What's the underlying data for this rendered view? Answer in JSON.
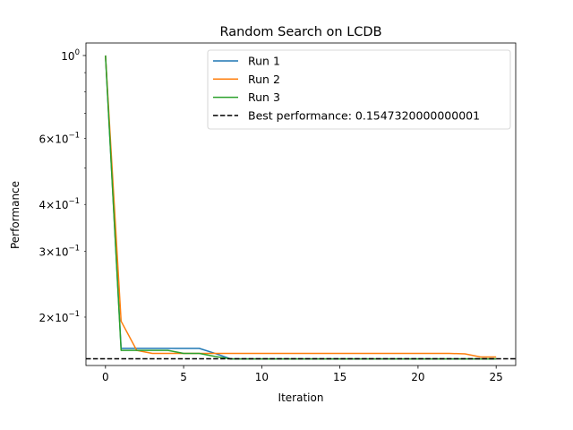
{
  "chart_data": {
    "type": "line",
    "title": "Random Search on LCDB",
    "xlabel": "Iteration",
    "ylabel": "Performance",
    "xlim": [
      -1.25,
      26.25
    ],
    "ylim": [
      0.1485,
      1.08
    ],
    "yscale": "log",
    "grid": false,
    "legend_position": "top-right",
    "x_ticks": [
      0,
      5,
      10,
      15,
      20,
      25
    ],
    "y_major_ticks": [
      {
        "value": 1.0,
        "label": "10^0"
      }
    ],
    "y_minor_ticks": [
      {
        "value": 0.6,
        "label": "6×10^-1"
      },
      {
        "value": 0.4,
        "label": "4×10^-1"
      },
      {
        "value": 0.3,
        "label": "3×10^-1"
      },
      {
        "value": 0.2,
        "label": "2×10^-1"
      }
    ],
    "y_minor_unlabeled": [
      0.9,
      0.8,
      0.7,
      0.5
    ],
    "x": [
      0,
      1,
      2,
      3,
      4,
      5,
      6,
      7,
      8,
      9,
      10,
      11,
      12,
      13,
      14,
      15,
      16,
      17,
      18,
      19,
      20,
      21,
      22,
      23,
      24,
      25
    ],
    "series": [
      {
        "name": "Run 1",
        "color": "#1f77b4",
        "values": [
          1.0,
          0.165,
          0.165,
          0.165,
          0.165,
          0.165,
          0.165,
          0.16,
          0.1547,
          0.1547,
          0.1547,
          0.1547,
          0.1547,
          0.1547,
          0.1547,
          0.1547,
          0.1547,
          0.1547,
          0.1547,
          0.1547,
          0.1547,
          0.1547,
          0.1547,
          0.1547,
          0.1547,
          0.1547
        ]
      },
      {
        "name": "Run 2",
        "color": "#ff7f0e",
        "values": [
          1.0,
          0.195,
          0.163,
          0.16,
          0.16,
          0.16,
          0.16,
          0.16,
          0.16,
          0.16,
          0.16,
          0.16,
          0.16,
          0.16,
          0.16,
          0.16,
          0.16,
          0.16,
          0.16,
          0.16,
          0.16,
          0.16,
          0.16,
          0.1595,
          0.1565,
          0.1565
        ]
      },
      {
        "name": "Run 3",
        "color": "#2ca02c",
        "values": [
          1.0,
          0.163,
          0.163,
          0.163,
          0.163,
          0.16,
          0.16,
          0.157,
          0.1547,
          0.1547,
          0.1547,
          0.1547,
          0.1547,
          0.1547,
          0.1547,
          0.1547,
          0.1547,
          0.1547,
          0.1547,
          0.1547,
          0.1547,
          0.1547,
          0.1547,
          0.1547,
          0.1547,
          0.1547
        ]
      }
    ],
    "reference_line": {
      "label": "Best performance: 0.1547320000000001",
      "value": 0.1547320000000001,
      "color": "#000000",
      "style": "dashed"
    }
  }
}
